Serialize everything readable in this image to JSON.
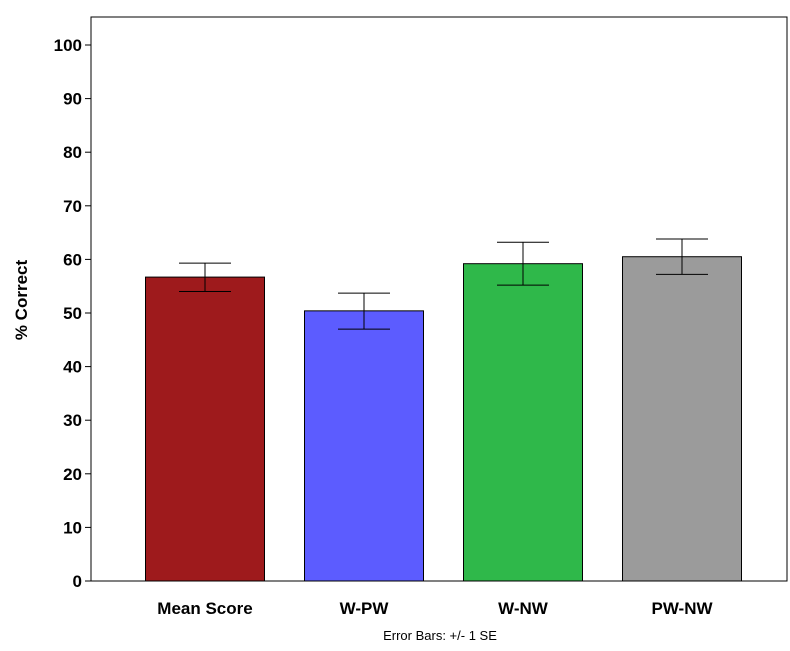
{
  "chart_data": {
    "type": "bar",
    "categories": [
      "Mean Score",
      "W-PW",
      "W-NW",
      "PW-NW"
    ],
    "values": [
      56.7,
      50.4,
      59.2,
      60.5
    ],
    "error_bars": [
      {
        "low": 54.0,
        "high": 59.3
      },
      {
        "low": 47.0,
        "high": 53.7
      },
      {
        "low": 55.2,
        "high": 63.2
      },
      {
        "low": 57.2,
        "high": 63.8
      }
    ],
    "colors": [
      "#9e1a1c",
      "#5c5cff",
      "#2fb84a",
      "#9b9b9b"
    ],
    "ylabel": "% Correct",
    "xlabel": "",
    "ylim": [
      0,
      100
    ],
    "yticks": [
      0,
      10,
      20,
      30,
      40,
      50,
      60,
      70,
      80,
      90,
      100
    ],
    "grid": false,
    "footnote": "Error Bars: +/- 1 SE"
  }
}
